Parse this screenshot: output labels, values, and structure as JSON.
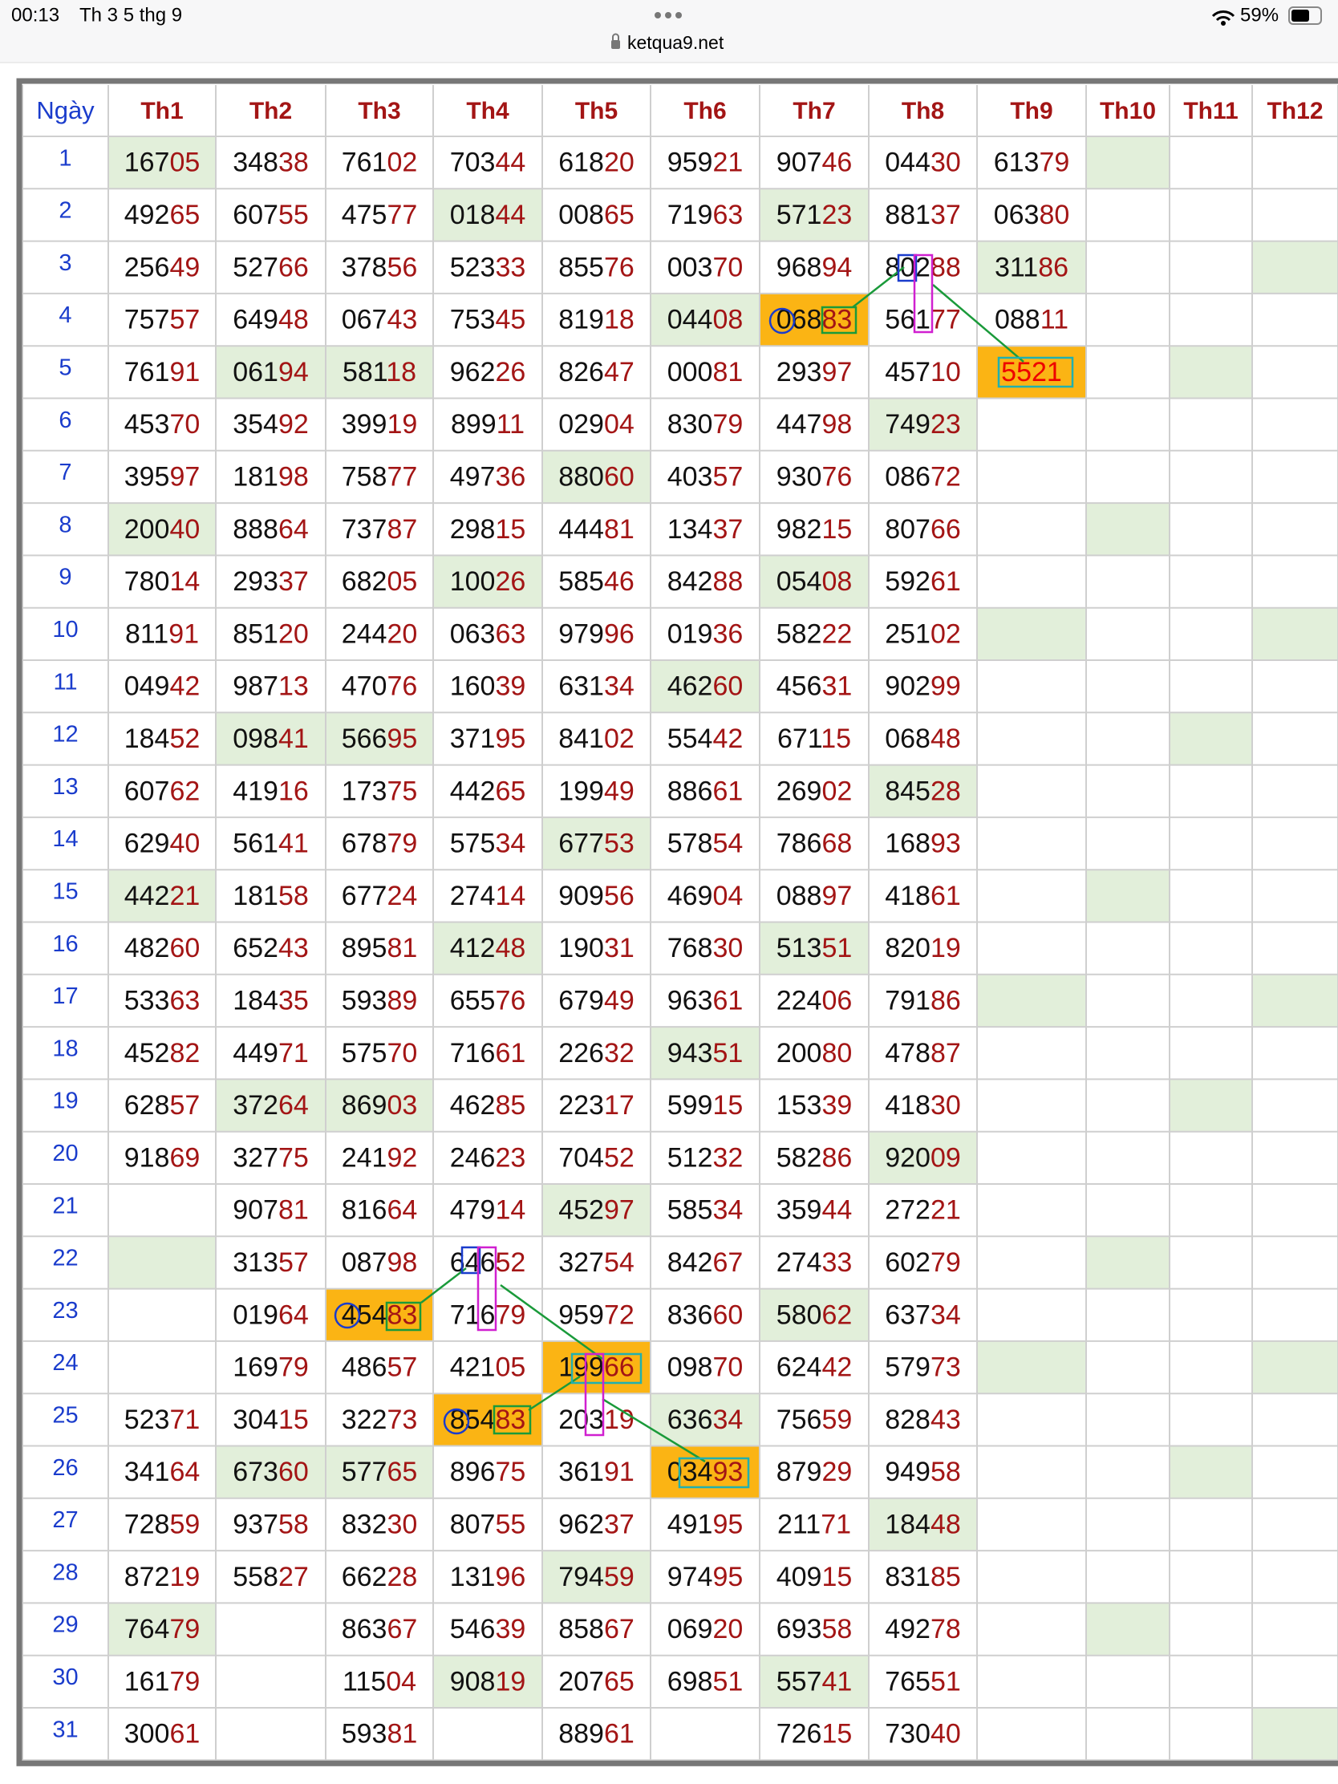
{
  "status_bar": {
    "time": "00:13",
    "date": "Th 3 5 thg 9",
    "battery": "59%",
    "url": "ketqua9.net"
  },
  "table": {
    "header": [
      "Ngày",
      "Th1",
      "Th2",
      "Th3",
      "Th4",
      "Th5",
      "Th6",
      "Th7",
      "Th8",
      "Th9",
      "Th10",
      "Th11",
      "Th12"
    ],
    "rows": [
      {
        "day": "1",
        "cells": [
          [
            "167",
            "05"
          ],
          [
            "348",
            "38"
          ],
          [
            "761",
            "02"
          ],
          [
            "703",
            "44"
          ],
          [
            "618",
            "20"
          ],
          [
            "959",
            "21"
          ],
          [
            "907",
            "46"
          ],
          [
            "044",
            "30"
          ],
          [
            "613",
            "79"
          ]
        ]
      },
      {
        "day": "2",
        "cells": [
          [
            "492",
            "65"
          ],
          [
            "607",
            "55"
          ],
          [
            "475",
            "77"
          ],
          [
            "018",
            "44"
          ],
          [
            "008",
            "65"
          ],
          [
            "719",
            "63"
          ],
          [
            "571",
            "23"
          ],
          [
            "881",
            "37"
          ],
          [
            "063",
            "80"
          ]
        ]
      },
      {
        "day": "3",
        "cells": [
          [
            "256",
            "49"
          ],
          [
            "527",
            "66"
          ],
          [
            "378",
            "56"
          ],
          [
            "523",
            "33"
          ],
          [
            "855",
            "76"
          ],
          [
            "003",
            "70"
          ],
          [
            "968",
            "94"
          ],
          [
            "802",
            "88"
          ],
          [
            "311",
            "86"
          ]
        ]
      },
      {
        "day": "4",
        "cells": [
          [
            "757",
            "57"
          ],
          [
            "649",
            "48"
          ],
          [
            "067",
            "43"
          ],
          [
            "753",
            "45"
          ],
          [
            "819",
            "18"
          ],
          [
            "044",
            "08"
          ],
          [
            "068",
            "83"
          ],
          [
            "561",
            "77"
          ],
          [
            "088",
            "11"
          ]
        ]
      },
      {
        "day": "5",
        "cells": [
          [
            "761",
            "91"
          ],
          [
            "061",
            "94"
          ],
          [
            "581",
            "18"
          ],
          [
            "962",
            "26"
          ],
          [
            "826",
            "47"
          ],
          [
            "000",
            "81"
          ],
          [
            "293",
            "97"
          ],
          [
            "457",
            "10"
          ],
          [
            "5521"
          ]
        ]
      },
      {
        "day": "6",
        "cells": [
          [
            "453",
            "70"
          ],
          [
            "354",
            "92"
          ],
          [
            "399",
            "19"
          ],
          [
            "899",
            "11"
          ],
          [
            "029",
            "04"
          ],
          [
            "830",
            "79"
          ],
          [
            "447",
            "98"
          ],
          [
            "749",
            "23"
          ]
        ]
      },
      {
        "day": "7",
        "cells": [
          [
            "395",
            "97"
          ],
          [
            "181",
            "98"
          ],
          [
            "758",
            "77"
          ],
          [
            "497",
            "36"
          ],
          [
            "880",
            "60"
          ],
          [
            "403",
            "57"
          ],
          [
            "930",
            "76"
          ],
          [
            "086",
            "72"
          ]
        ]
      },
      {
        "day": "8",
        "cells": [
          [
            "200",
            "40"
          ],
          [
            "888",
            "64"
          ],
          [
            "737",
            "87"
          ],
          [
            "298",
            "15"
          ],
          [
            "444",
            "81"
          ],
          [
            "134",
            "37"
          ],
          [
            "982",
            "15"
          ],
          [
            "807",
            "66"
          ]
        ]
      },
      {
        "day": "9",
        "cells": [
          [
            "780",
            "14"
          ],
          [
            "293",
            "37"
          ],
          [
            "682",
            "05"
          ],
          [
            "100",
            "26"
          ],
          [
            "585",
            "46"
          ],
          [
            "842",
            "88"
          ],
          [
            "054",
            "08"
          ],
          [
            "592",
            "61"
          ]
        ]
      },
      {
        "day": "10",
        "cells": [
          [
            "811",
            "91"
          ],
          [
            "851",
            "20"
          ],
          [
            "244",
            "20"
          ],
          [
            "063",
            "63"
          ],
          [
            "979",
            "96"
          ],
          [
            "019",
            "36"
          ],
          [
            "582",
            "22"
          ],
          [
            "251",
            "02"
          ]
        ]
      },
      {
        "day": "11",
        "cells": [
          [
            "049",
            "42"
          ],
          [
            "987",
            "13"
          ],
          [
            "470",
            "76"
          ],
          [
            "160",
            "39"
          ],
          [
            "631",
            "34"
          ],
          [
            "462",
            "60"
          ],
          [
            "456",
            "31"
          ],
          [
            "902",
            "99"
          ]
        ]
      },
      {
        "day": "12",
        "cells": [
          [
            "184",
            "52"
          ],
          [
            "098",
            "41"
          ],
          [
            "566",
            "95"
          ],
          [
            "371",
            "95"
          ],
          [
            "841",
            "02"
          ],
          [
            "554",
            "42"
          ],
          [
            "671",
            "15"
          ],
          [
            "068",
            "48"
          ]
        ]
      },
      {
        "day": "13",
        "cells": [
          [
            "607",
            "62"
          ],
          [
            "419",
            "16"
          ],
          [
            "173",
            "75"
          ],
          [
            "442",
            "65"
          ],
          [
            "199",
            "49"
          ],
          [
            "886",
            "61"
          ],
          [
            "269",
            "02"
          ],
          [
            "845",
            "28"
          ]
        ]
      },
      {
        "day": "14",
        "cells": [
          [
            "629",
            "40"
          ],
          [
            "561",
            "41"
          ],
          [
            "678",
            "79"
          ],
          [
            "575",
            "34"
          ],
          [
            "677",
            "53"
          ],
          [
            "578",
            "54"
          ],
          [
            "786",
            "68"
          ],
          [
            "168",
            "93"
          ]
        ]
      },
      {
        "day": "15",
        "cells": [
          [
            "442",
            "21"
          ],
          [
            "181",
            "58"
          ],
          [
            "677",
            "24"
          ],
          [
            "274",
            "14"
          ],
          [
            "909",
            "56"
          ],
          [
            "469",
            "04"
          ],
          [
            "088",
            "97"
          ],
          [
            "418",
            "61"
          ]
        ]
      },
      {
        "day": "16",
        "cells": [
          [
            "482",
            "60"
          ],
          [
            "652",
            "43"
          ],
          [
            "895",
            "81"
          ],
          [
            "412",
            "48"
          ],
          [
            "190",
            "31"
          ],
          [
            "768",
            "30"
          ],
          [
            "513",
            "51"
          ],
          [
            "820",
            "19"
          ]
        ]
      },
      {
        "day": "17",
        "cells": [
          [
            "533",
            "63"
          ],
          [
            "184",
            "35"
          ],
          [
            "593",
            "89"
          ],
          [
            "655",
            "76"
          ],
          [
            "679",
            "49"
          ],
          [
            "963",
            "61"
          ],
          [
            "224",
            "06"
          ],
          [
            "791",
            "86"
          ]
        ]
      },
      {
        "day": "18",
        "cells": [
          [
            "452",
            "82"
          ],
          [
            "449",
            "71"
          ],
          [
            "575",
            "70"
          ],
          [
            "716",
            "61"
          ],
          [
            "226",
            "32"
          ],
          [
            "943",
            "51"
          ],
          [
            "200",
            "80"
          ],
          [
            "478",
            "87"
          ]
        ]
      },
      {
        "day": "19",
        "cells": [
          [
            "628",
            "57"
          ],
          [
            "372",
            "64"
          ],
          [
            "869",
            "03"
          ],
          [
            "462",
            "85"
          ],
          [
            "223",
            "17"
          ],
          [
            "599",
            "15"
          ],
          [
            "153",
            "39"
          ],
          [
            "418",
            "30"
          ]
        ]
      },
      {
        "day": "20",
        "cells": [
          [
            "918",
            "69"
          ],
          [
            "327",
            "75"
          ],
          [
            "241",
            "92"
          ],
          [
            "246",
            "23"
          ],
          [
            "704",
            "52"
          ],
          [
            "512",
            "32"
          ],
          [
            "582",
            "86"
          ],
          [
            "920",
            "09"
          ]
        ]
      },
      {
        "day": "21",
        "cells": [
          null,
          [
            "907",
            "81"
          ],
          [
            "816",
            "64"
          ],
          [
            "479",
            "14"
          ],
          [
            "452",
            "97"
          ],
          [
            "585",
            "34"
          ],
          [
            "359",
            "44"
          ],
          [
            "272",
            "21"
          ]
        ]
      },
      {
        "day": "22",
        "cells": [
          null,
          [
            "313",
            "57"
          ],
          [
            "087",
            "98"
          ],
          [
            "646",
            "52"
          ],
          [
            "327",
            "54"
          ],
          [
            "842",
            "67"
          ],
          [
            "274",
            "33"
          ],
          [
            "602",
            "79"
          ]
        ]
      },
      {
        "day": "23",
        "cells": [
          null,
          [
            "019",
            "64"
          ],
          [
            "454",
            "83"
          ],
          [
            "716",
            "79"
          ],
          [
            "959",
            "72"
          ],
          [
            "836",
            "60"
          ],
          [
            "580",
            "62"
          ],
          [
            "637",
            "34"
          ]
        ]
      },
      {
        "day": "24",
        "cells": [
          null,
          [
            "169",
            "79"
          ],
          [
            "486",
            "57"
          ],
          [
            "421",
            "05"
          ],
          [
            "199",
            "66"
          ],
          [
            "098",
            "70"
          ],
          [
            "624",
            "42"
          ],
          [
            "579",
            "73"
          ]
        ]
      },
      {
        "day": "25",
        "cells": [
          [
            "523",
            "71"
          ],
          [
            "304",
            "15"
          ],
          [
            "322",
            "73"
          ],
          [
            "854",
            "83"
          ],
          [
            "203",
            "19"
          ],
          [
            "636",
            "34"
          ],
          [
            "756",
            "59"
          ],
          [
            "828",
            "43"
          ]
        ]
      },
      {
        "day": "26",
        "cells": [
          [
            "341",
            "64"
          ],
          [
            "673",
            "60"
          ],
          [
            "577",
            "65"
          ],
          [
            "896",
            "75"
          ],
          [
            "361",
            "91"
          ],
          [
            "034",
            "93"
          ],
          [
            "879",
            "29"
          ],
          [
            "949",
            "58"
          ]
        ]
      },
      {
        "day": "27",
        "cells": [
          [
            "728",
            "59"
          ],
          [
            "937",
            "58"
          ],
          [
            "832",
            "30"
          ],
          [
            "807",
            "55"
          ],
          [
            "962",
            "37"
          ],
          [
            "491",
            "95"
          ],
          [
            "211",
            "71"
          ],
          [
            "184",
            "48"
          ]
        ]
      },
      {
        "day": "28",
        "cells": [
          [
            "872",
            "19"
          ],
          [
            "558",
            "27"
          ],
          [
            "662",
            "28"
          ],
          [
            "131",
            "96"
          ],
          [
            "794",
            "59"
          ],
          [
            "974",
            "95"
          ],
          [
            "409",
            "15"
          ],
          [
            "831",
            "85"
          ]
        ]
      },
      {
        "day": "29",
        "cells": [
          [
            "764",
            "79"
          ],
          null,
          [
            "863",
            "67"
          ],
          [
            "546",
            "39"
          ],
          [
            "858",
            "67"
          ],
          [
            "069",
            "20"
          ],
          [
            "693",
            "58"
          ],
          [
            "492",
            "78"
          ]
        ]
      },
      {
        "day": "30",
        "cells": [
          [
            "161",
            "79"
          ],
          null,
          [
            "115",
            "04"
          ],
          [
            "908",
            "19"
          ],
          [
            "207",
            "65"
          ],
          [
            "698",
            "51"
          ],
          [
            "557",
            "41"
          ],
          [
            "765",
            "51"
          ]
        ]
      },
      {
        "day": "31",
        "cells": [
          [
            "300",
            "61"
          ],
          null,
          [
            "593",
            "81"
          ],
          null,
          [
            "889",
            "61"
          ],
          null,
          [
            "726",
            "15"
          ],
          [
            "730",
            "40"
          ]
        ]
      }
    ]
  }
}
